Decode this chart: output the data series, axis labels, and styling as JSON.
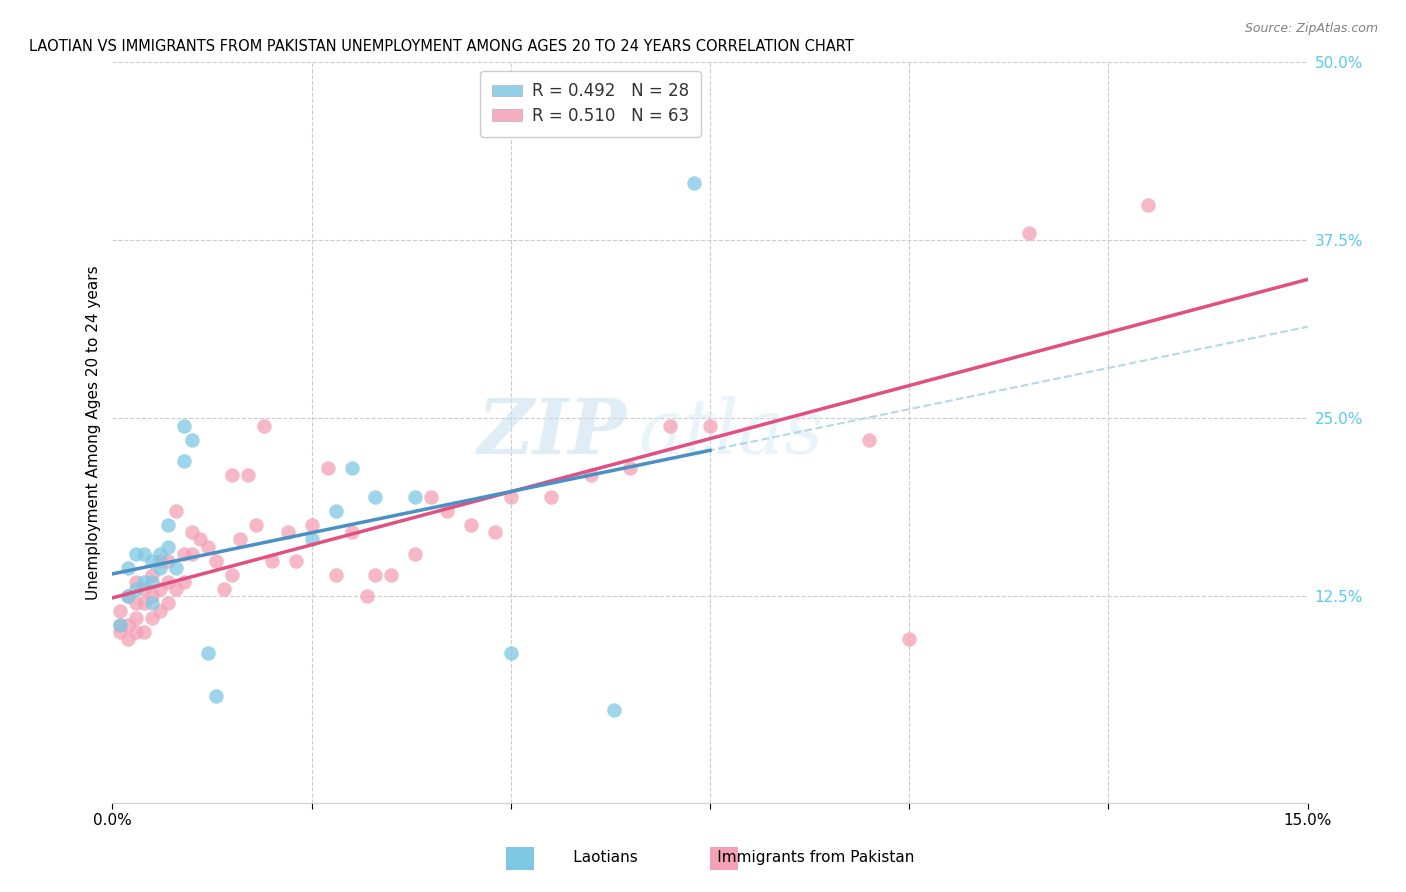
{
  "title": "LAOTIAN VS IMMIGRANTS FROM PAKISTAN UNEMPLOYMENT AMONG AGES 20 TO 24 YEARS CORRELATION CHART",
  "source": "Source: ZipAtlas.com",
  "ylabel": "Unemployment Among Ages 20 to 24 years",
  "legend_label1": "R = 0.492   N = 28",
  "legend_label2": "R = 0.510   N = 63",
  "watermark_zip": "ZIP",
  "watermark_atlas": "atlas",
  "background_color": "#ffffff",
  "grid_color": "#cccccc",
  "blue_color": "#7ec8e3",
  "pink_color": "#f4a0b5",
  "blue_line_color": "#4a90c4",
  "pink_line_color": "#e05080",
  "blue_dash_color": "#aad4e8",
  "xlim": [
    0.0,
    0.15
  ],
  "ylim": [
    -0.02,
    0.5
  ],
  "laotian_x": [
    0.001,
    0.002,
    0.002,
    0.003,
    0.003,
    0.004,
    0.004,
    0.005,
    0.005,
    0.005,
    0.006,
    0.006,
    0.007,
    0.007,
    0.008,
    0.009,
    0.009,
    0.01,
    0.012,
    0.013,
    0.025,
    0.028,
    0.03,
    0.033,
    0.038,
    0.05,
    0.063,
    0.073
  ],
  "laotian_y": [
    0.105,
    0.125,
    0.145,
    0.13,
    0.155,
    0.135,
    0.155,
    0.12,
    0.135,
    0.15,
    0.155,
    0.145,
    0.16,
    0.175,
    0.145,
    0.22,
    0.245,
    0.235,
    0.085,
    0.055,
    0.165,
    0.185,
    0.215,
    0.195,
    0.195,
    0.085,
    0.045,
    0.415
  ],
  "pakistan_x": [
    0.001,
    0.001,
    0.001,
    0.002,
    0.002,
    0.002,
    0.003,
    0.003,
    0.003,
    0.003,
    0.004,
    0.004,
    0.004,
    0.005,
    0.005,
    0.005,
    0.006,
    0.006,
    0.006,
    0.007,
    0.007,
    0.007,
    0.008,
    0.008,
    0.009,
    0.009,
    0.01,
    0.01,
    0.011,
    0.012,
    0.013,
    0.014,
    0.015,
    0.015,
    0.016,
    0.017,
    0.018,
    0.019,
    0.02,
    0.022,
    0.023,
    0.025,
    0.027,
    0.028,
    0.03,
    0.032,
    0.033,
    0.035,
    0.038,
    0.04,
    0.042,
    0.045,
    0.048,
    0.05,
    0.055,
    0.06,
    0.065,
    0.07,
    0.075,
    0.095,
    0.1,
    0.115,
    0.13
  ],
  "pakistan_y": [
    0.1,
    0.105,
    0.115,
    0.095,
    0.105,
    0.125,
    0.1,
    0.11,
    0.12,
    0.135,
    0.1,
    0.12,
    0.13,
    0.11,
    0.125,
    0.14,
    0.115,
    0.13,
    0.15,
    0.12,
    0.135,
    0.15,
    0.13,
    0.185,
    0.135,
    0.155,
    0.17,
    0.155,
    0.165,
    0.16,
    0.15,
    0.13,
    0.14,
    0.21,
    0.165,
    0.21,
    0.175,
    0.245,
    0.15,
    0.17,
    0.15,
    0.175,
    0.215,
    0.14,
    0.17,
    0.125,
    0.14,
    0.14,
    0.155,
    0.195,
    0.185,
    0.175,
    0.17,
    0.195,
    0.195,
    0.21,
    0.215,
    0.245,
    0.245,
    0.235,
    0.095,
    0.38,
    0.4
  ]
}
